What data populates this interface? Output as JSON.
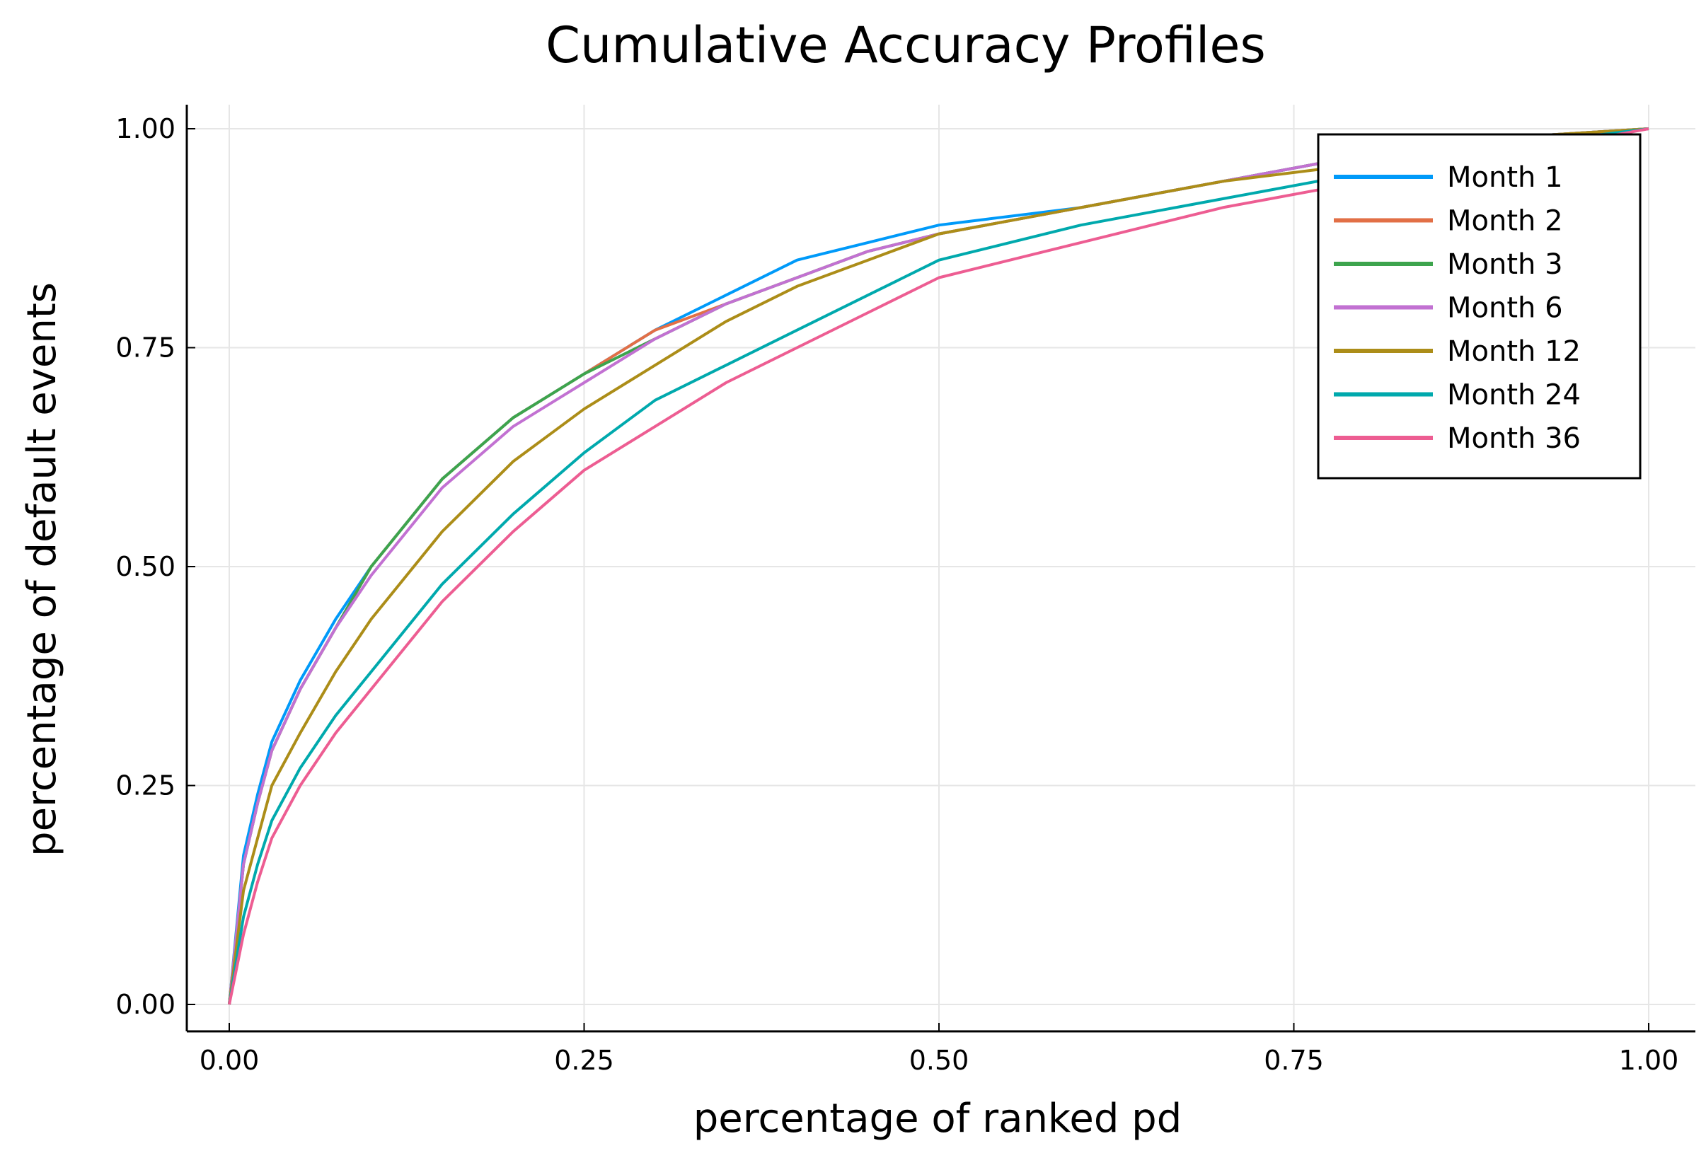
{
  "chart_data": {
    "type": "line",
    "title": "Cumulative Accuracy Profiles",
    "xlabel": "percentage of ranked pd",
    "ylabel": "percentage of default events",
    "xlim": [
      0,
      1
    ],
    "ylim": [
      0,
      1
    ],
    "xticks": [
      "0.00",
      "0.25",
      "0.50",
      "0.75",
      "1.00"
    ],
    "yticks": [
      "0.00",
      "0.25",
      "0.50",
      "0.75",
      "1.00"
    ],
    "grid": true,
    "legend_position": "top-right",
    "x": [
      0,
      0.01,
      0.02,
      0.03,
      0.05,
      0.075,
      0.1,
      0.15,
      0.2,
      0.25,
      0.3,
      0.35,
      0.4,
      0.45,
      0.5,
      0.6,
      0.7,
      0.8,
      0.9,
      1.0
    ],
    "series": [
      {
        "name": "Month 1",
        "color": "#009af9",
        "values": [
          0,
          0.17,
          0.24,
          0.3,
          0.37,
          0.44,
          0.5,
          0.6,
          0.67,
          0.72,
          0.77,
          0.81,
          0.85,
          0.87,
          0.89,
          0.91,
          0.94,
          0.97,
          0.99,
          1.0
        ]
      },
      {
        "name": "Month 2",
        "color": "#e26f46",
        "values": [
          0,
          0.16,
          0.23,
          0.29,
          0.36,
          0.43,
          0.5,
          0.6,
          0.67,
          0.72,
          0.77,
          0.8,
          0.83,
          0.86,
          0.88,
          0.91,
          0.94,
          0.97,
          0.99,
          1.0
        ]
      },
      {
        "name": "Month 3",
        "color": "#3da44d",
        "values": [
          0,
          0.16,
          0.23,
          0.29,
          0.36,
          0.43,
          0.5,
          0.6,
          0.67,
          0.72,
          0.76,
          0.8,
          0.83,
          0.86,
          0.88,
          0.91,
          0.94,
          0.97,
          0.99,
          1.0
        ]
      },
      {
        "name": "Month 6",
        "color": "#c271d2",
        "values": [
          0,
          0.16,
          0.23,
          0.29,
          0.36,
          0.43,
          0.49,
          0.59,
          0.66,
          0.71,
          0.76,
          0.8,
          0.83,
          0.86,
          0.88,
          0.91,
          0.94,
          0.97,
          0.99,
          1.0
        ]
      },
      {
        "name": "Month 12",
        "color": "#ac8d18",
        "values": [
          0,
          0.13,
          0.19,
          0.25,
          0.31,
          0.38,
          0.44,
          0.54,
          0.62,
          0.68,
          0.73,
          0.78,
          0.82,
          0.85,
          0.88,
          0.91,
          0.94,
          0.96,
          0.99,
          1.0
        ]
      },
      {
        "name": "Month 24",
        "color": "#00a9ad",
        "values": [
          0,
          0.1,
          0.16,
          0.21,
          0.27,
          0.33,
          0.38,
          0.48,
          0.56,
          0.63,
          0.69,
          0.73,
          0.77,
          0.81,
          0.85,
          0.89,
          0.92,
          0.95,
          0.98,
          1.0
        ]
      },
      {
        "name": "Month 36",
        "color": "#ed5d92",
        "values": [
          0,
          0.08,
          0.14,
          0.19,
          0.25,
          0.31,
          0.36,
          0.46,
          0.54,
          0.61,
          0.66,
          0.71,
          0.75,
          0.79,
          0.83,
          0.87,
          0.91,
          0.94,
          0.97,
          1.0
        ]
      }
    ]
  }
}
